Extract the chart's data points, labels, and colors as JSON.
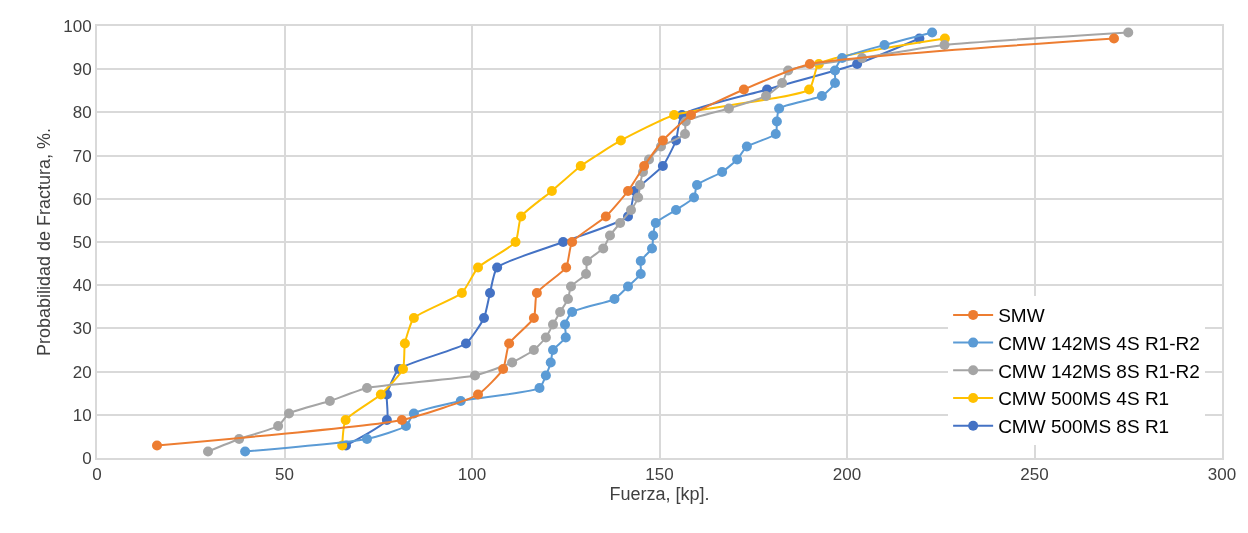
{
  "chart_data": {
    "type": "line",
    "xlabel": "Fuerza, [kp].",
    "ylabel": "Probabilidad de Fractura, %.",
    "xlim": [
      0,
      300
    ],
    "xticks": [
      0,
      50,
      100,
      150,
      200,
      250,
      300
    ],
    "ylim": [
      0,
      100
    ],
    "yticks": [
      0,
      10,
      20,
      30,
      40,
      50,
      60,
      70,
      80,
      90,
      100
    ],
    "grid": true,
    "legend": "bottom right",
    "marker": "circle",
    "line_style": "solid",
    "series": [
      {
        "name": "SMW",
        "color": "#ed7d31",
        "x": [
          16,
          81.3,
          101.6,
          108.3,
          109.9,
          116.5,
          117.3,
          125.1,
          126.7,
          135.7,
          141.6,
          145.9,
          150.9,
          158.4,
          172.5,
          190.1,
          271.2
        ],
        "values": [
          2.9,
          8.8,
          14.7,
          20.6,
          26.5,
          32.4,
          38.2,
          44.1,
          50,
          55.9,
          61.8,
          67.6,
          73.5,
          79.4,
          85.3,
          91.2,
          97.1
        ]
      },
      {
        "name": "CMW 142MS 4S R1-R2",
        "color": "#5b9bd5",
        "x": [
          39.5,
          72,
          82.4,
          84.5,
          97,
          118,
          119.7,
          121,
          121.6,
          125,
          124.8,
          126.7,
          138,
          141.6,
          145,
          145,
          148,
          148.3,
          149,
          154.4,
          159.2,
          160,
          166.7,
          170.7,
          173.3,
          181,
          181.3,
          181.9,
          193.3,
          196.8,
          196.8,
          198.7,
          210,
          222.7
        ],
        "values": [
          1.5,
          4.4,
          7.4,
          10.3,
          13.2,
          16.2,
          19.1,
          22.1,
          25,
          27.9,
          30.9,
          33.8,
          36.8,
          39.7,
          42.6,
          45.6,
          48.5,
          51.5,
          54.4,
          57.4,
          60.3,
          63.2,
          66.2,
          69.1,
          72.1,
          75,
          77.9,
          80.9,
          83.8,
          86.8,
          89.7,
          92.6,
          95.6,
          98.5
        ]
      },
      {
        "name": "CMW 142MS 8S R1-R2",
        "color": "#a5a5a5",
        "x": [
          29.6,
          37.9,
          48.3,
          51.2,
          62.1,
          72,
          100.8,
          110.7,
          116.5,
          119.7,
          121.6,
          123.5,
          125.6,
          126.4,
          130.4,
          130.7,
          135,
          136.8,
          139.5,
          142.4,
          144.3,
          144.8,
          145.6,
          147.2,
          150.4,
          156.8,
          157,
          168.5,
          178.4,
          182.7,
          184.3,
          204,
          226,
          275
        ],
        "values": [
          1.5,
          4.4,
          7.4,
          10.3,
          13.2,
          16.2,
          19.1,
          22.1,
          25,
          27.9,
          30.9,
          33.8,
          36.8,
          39.7,
          42.6,
          45.6,
          48.5,
          51.5,
          54.4,
          57.4,
          60.3,
          63.2,
          66.2,
          69.1,
          72.1,
          75,
          77.9,
          80.9,
          83.8,
          86.8,
          89.7,
          92.6,
          95.6,
          98.5
        ]
      },
      {
        "name": "CMW 500MS 4S R1",
        "color": "#ffc000",
        "x": [
          65.4,
          66.3,
          75.7,
          81.6,
          82.1,
          84.5,
          97.3,
          101.6,
          111.6,
          113.1,
          121.3,
          129,
          139.7,
          153.9,
          189.9,
          192.5,
          226.1
        ],
        "values": [
          2.9,
          8.8,
          14.7,
          20.6,
          26.5,
          32.4,
          38.2,
          44.1,
          50,
          55.9,
          61.8,
          67.6,
          73.5,
          79.4,
          85.3,
          91.2,
          97.1
        ]
      },
      {
        "name": "CMW 500MS 8S R1",
        "color": "#4472c4",
        "x": [
          66.4,
          77.3,
          77.3,
          80.5,
          98.4,
          103.2,
          104.8,
          106.7,
          124.3,
          141.6,
          143.5,
          150.9,
          154.4,
          156,
          178.7,
          202.7,
          219.3
        ],
        "values": [
          2.9,
          8.8,
          14.7,
          20.6,
          26.5,
          32.4,
          38.2,
          44.1,
          50,
          55.9,
          61.8,
          67.6,
          73.5,
          79.4,
          85.3,
          91.2,
          97.1
        ]
      }
    ]
  }
}
